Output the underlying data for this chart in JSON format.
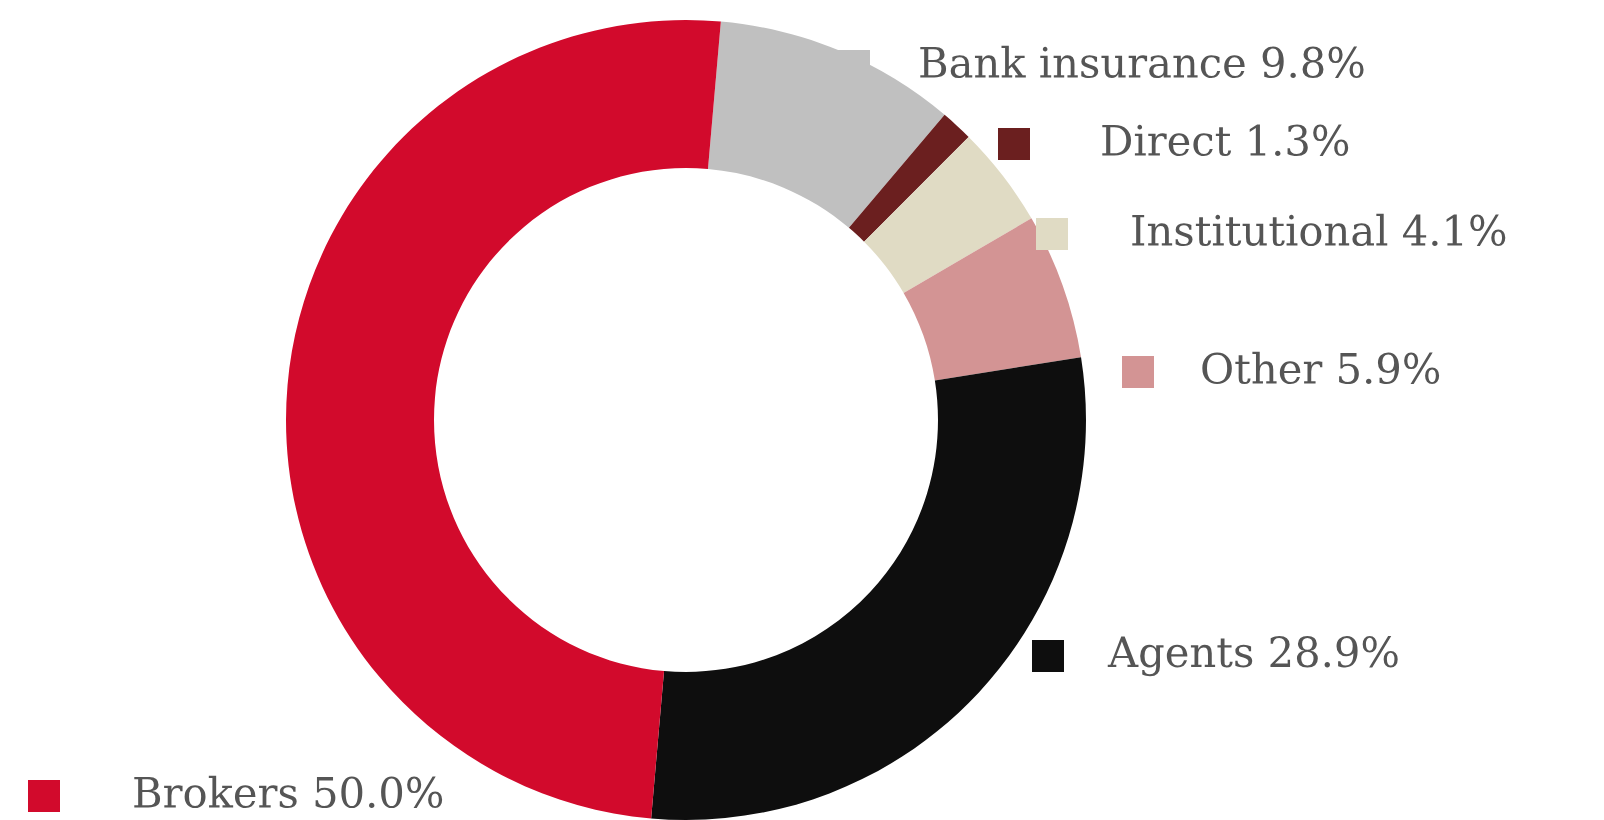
{
  "chart_data": {
    "type": "donut",
    "categories": [
      "Bank insurance",
      "Direct",
      "Institutional",
      "Other",
      "Agents",
      "Brokers"
    ],
    "values": [
      9.8,
      1.3,
      4.1,
      5.9,
      28.9,
      50.0
    ],
    "value_labels": [
      "9.8%",
      "1.3%",
      "4.1%",
      "5.9%",
      "28.9%",
      "50.0%"
    ],
    "legend": "right",
    "colors": [
      "#c0c0c0",
      "#6b1f1f",
      "#e0dbc4",
      "#d39494",
      "#0e0e0e",
      "#d20a2c"
    ]
  }
}
